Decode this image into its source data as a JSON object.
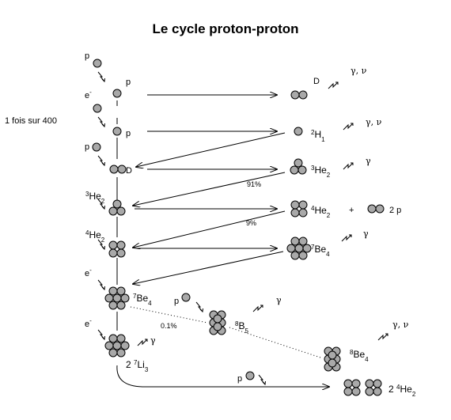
{
  "title": "Le cycle proton-proton",
  "side_note": "1 fois sur 400",
  "symbols": {
    "p": "p",
    "e": "e",
    "minus": "-",
    "D": "D",
    "plus": "+",
    "gamma": "γ",
    "gamma_nu": "γ, ν",
    "two_p": "2 p"
  },
  "nuclides": {
    "H1": {
      "mass": "2",
      "el": "H",
      "z": "1"
    },
    "He2": {
      "mass": "3",
      "el": "He",
      "z": "2"
    },
    "He4": {
      "mass": "4",
      "el": "He",
      "z": "2"
    },
    "Be7": {
      "mass": "7",
      "el": "Be",
      "z": "4"
    },
    "B8": {
      "mass": "8",
      "el": "B",
      "z": "5"
    },
    "Be8": {
      "mass": "8",
      "el": "Be",
      "z": "4"
    },
    "Li7": {
      "prefix": "2 ",
      "mass": "7",
      "el": "Li",
      "z": "3"
    },
    "He4_final": {
      "prefix": "2 ",
      "mass": "4",
      "el": "He",
      "z": "2"
    }
  },
  "branches": {
    "b91": "91%",
    "b9": "9%",
    "b01": "0.1%"
  },
  "colors": {
    "nucleon_fill": "#a9a9a9",
    "stroke": "#000000"
  }
}
